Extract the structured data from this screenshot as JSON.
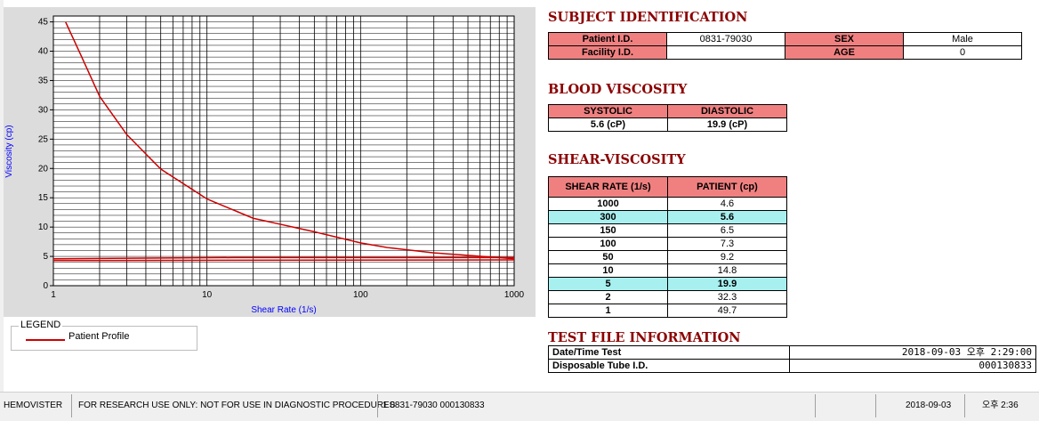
{
  "chart_data": {
    "type": "line",
    "xlabel": "Shear Rate (1/s)",
    "ylabel": "Viscosity (cp)",
    "x_scale": "log",
    "xlim": [
      1,
      1000
    ],
    "ylim": [
      0,
      46
    ],
    "x_ticks": [
      "1",
      "10",
      "100",
      "1000"
    ],
    "y_ticks": [
      "0",
      "5",
      "10",
      "15",
      "20",
      "25",
      "30",
      "35",
      "40",
      "45"
    ],
    "grid": true,
    "series": [
      {
        "name": "Patient Profile",
        "color": "#cc0000",
        "x": [
          1.2,
          1.5,
          2,
          3,
          5,
          10,
          20,
          50,
          100,
          150,
          300,
          1000
        ],
        "y": [
          45,
          39.5,
          32.3,
          25.8,
          19.9,
          14.8,
          11.5,
          9.2,
          7.3,
          6.5,
          5.6,
          4.6
        ]
      },
      {
        "color": "#cc0000",
        "x": [
          1,
          15,
          1000
        ],
        "y": [
          4.6,
          4.8,
          4.8
        ]
      },
      {
        "color": "#cc0000",
        "x": [
          1,
          1000
        ],
        "y": [
          4.3,
          4.4
        ]
      }
    ]
  },
  "legend": {
    "title": "LEGEND",
    "label": "Patient Profile"
  },
  "subject": {
    "heading": "SUBJECT IDENTIFICATION",
    "patient_id_label": "Patient I.D.",
    "patient_id": "0831-79030",
    "sex_label": "SEX",
    "sex": "Male",
    "facility_label": "Facility I.D.",
    "facility": "",
    "age_label": "AGE",
    "age": "0"
  },
  "blood": {
    "heading": "BLOOD VISCOSITY",
    "systolic_label": "SYSTOLIC",
    "diastolic_label": "DIASTOLIC",
    "systolic": "5.6 (cP)",
    "diastolic": "19.9 (cP)"
  },
  "shear": {
    "heading": "SHEAR-VISCOSITY",
    "col_rate": "SHEAR RATE (1/s)",
    "col_patient": "PATIENT (cp)",
    "rows": [
      {
        "rate": "1000",
        "value": "4.6"
      },
      {
        "rate": "300",
        "value": "5.6"
      },
      {
        "rate": "150",
        "value": "6.5"
      },
      {
        "rate": "100",
        "value": "7.3"
      },
      {
        "rate": "50",
        "value": "9.2"
      },
      {
        "rate": "10",
        "value": "14.8"
      },
      {
        "rate": "5",
        "value": "19.9"
      },
      {
        "rate": "2",
        "value": "32.3"
      },
      {
        "rate": "1",
        "value": "49.7"
      }
    ]
  },
  "testfile": {
    "heading": "TEST FILE INFORMATION",
    "date_label": "Date/Time Test",
    "date_value": "2018-09-03  오후 2:29:00",
    "tube_label": "Disposable Tube I.D.",
    "tube_value": "000130833"
  },
  "status": {
    "app": "HEMOVISTER",
    "notice": "FOR RESEARCH USE ONLY: NOT FOR USE IN DIAGNOSTIC PROCEDURES",
    "record": "1  0831-79030  000130833",
    "date": "2018-09-03",
    "time": "오후 2:36"
  },
  "colors": {
    "header_fill": "#f08080",
    "highlight_row": "#a8f0f0",
    "heading_text": "#8b0000",
    "curve": "#cc0000"
  }
}
